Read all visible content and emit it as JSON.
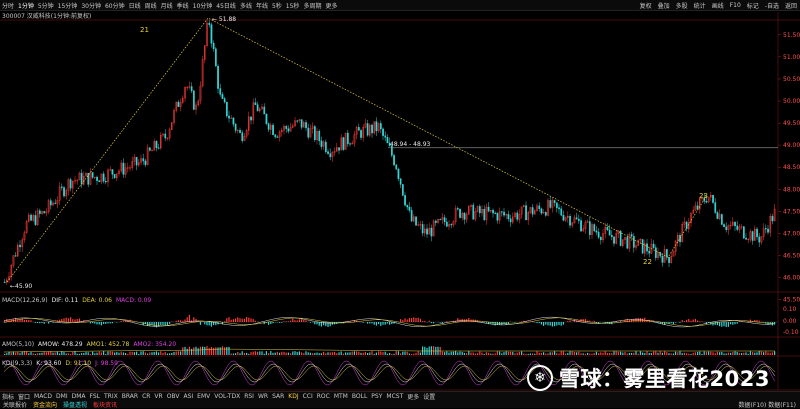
{
  "toolbar": {
    "tabs": [
      "分时",
      "1分钟",
      "5分钟",
      "15分钟",
      "30分钟",
      "60分钟",
      "日线",
      "周线",
      "月线",
      "季线",
      "10分钟",
      "45日线",
      "多线",
      "年线",
      "5秒",
      "15秒",
      "多周期",
      "更多"
    ],
    "active_tab": 1,
    "right_items": [
      "复权",
      "叠加",
      "多股",
      "统计",
      "画线",
      "F10",
      "标记",
      "-自选",
      "返回"
    ]
  },
  "title": "300007 汉威科技(1分钟:前复权)",
  "main_chart": {
    "price_labels": [
      "51.50",
      "51.00",
      "50.50",
      "50.00",
      "49.50",
      "49.00",
      "48.50",
      "48.00",
      "47.50",
      "47.00",
      "46.50",
      "46.00",
      "45.50"
    ],
    "low_price": "45.90",
    "high_price": "51.88",
    "mid_annotation": "48.94 - 48.93",
    "wave_labels": [
      "21",
      "22",
      "23"
    ]
  },
  "macd": {
    "title": "MACD(12,26,9)",
    "dif": "DIF: 0.11",
    "dea": "DEA: 0.06",
    "macd": "MACD: 0.09",
    "axis_labels": [
      "0.10",
      "0.00",
      "-0.10"
    ]
  },
  "amo": {
    "title": "AMO(5,10)",
    "amow": "AMOW: 478.29",
    "amo1": "AMO1: 452.78",
    "amo2": "AMO2: 354.20"
  },
  "kdj": {
    "title": "KDJ(9,3,3)",
    "k": "K: 93.60",
    "d": "D: 91.10",
    "j": "J: 98.59"
  },
  "indicators": [
    "指标",
    "窗口",
    "MACD",
    "DMI",
    "DMA",
    "FSL",
    "TRIX",
    "BRAR",
    "CR",
    "VR",
    "OBV",
    "ASI",
    "EMV",
    "VOL-TDX",
    "RSI",
    "WR",
    "SAR",
    "KDJ",
    "CCI",
    "ROC",
    "MTM",
    "BOLL",
    "PSY",
    "MCST",
    "更多",
    "设置"
  ],
  "active_indicator": "KDJ",
  "status": [
    "关联报价",
    "资金流向",
    "操盘透视",
    "板块资讯"
  ],
  "status_right": "数据(F10) 数据(F11)",
  "period_right": "1分钟",
  "watermark": {
    "logo": "❄",
    "text": "雪球：雾里看花2023"
  },
  "colors": {
    "up": "#ff3b3b",
    "down": "#33d6d6",
    "bg": "#000000",
    "yellow": "#e6d23c",
    "white": "#e8e8e8",
    "magenta": "#e040e0"
  }
}
